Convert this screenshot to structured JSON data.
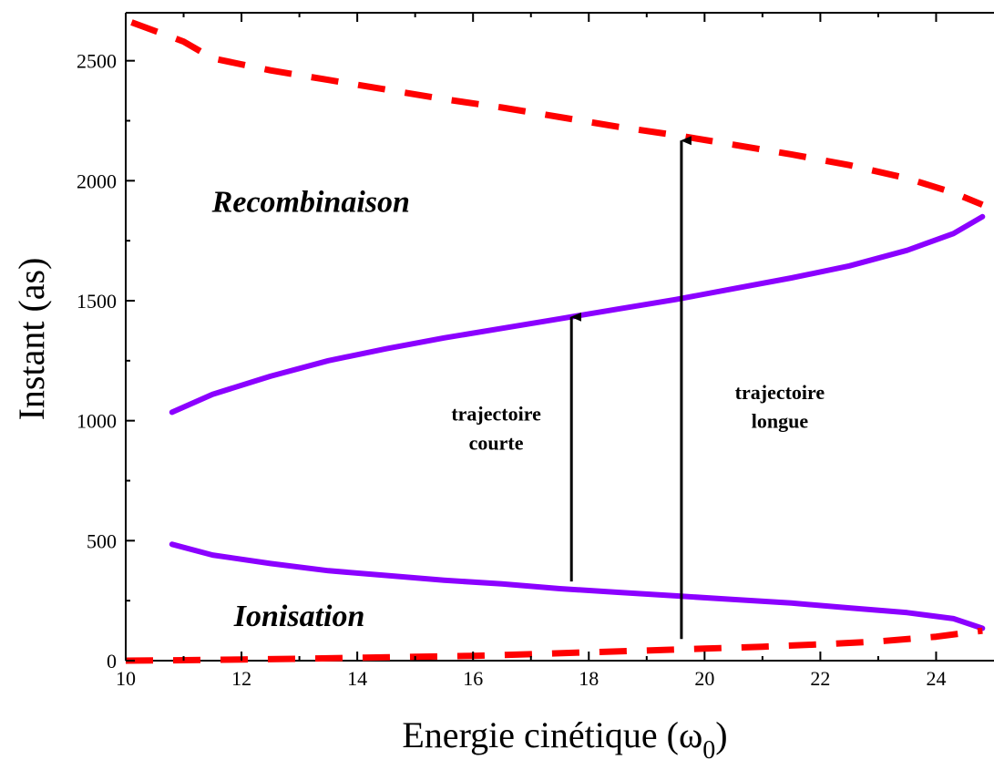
{
  "chart_data": {
    "type": "line",
    "title": "",
    "xlabel": "Energie cinétique (ω",
    "xlabel_sub": "0",
    "xlabel_end": ")",
    "ylabel": "Instant (as)",
    "xlim": [
      10,
      25
    ],
    "ylim": [
      0,
      2700
    ],
    "xticks": [
      10,
      12,
      14,
      16,
      18,
      20,
      22,
      24
    ],
    "yticks": [
      0,
      500,
      1000,
      1500,
      2000,
      2500
    ],
    "grid": false,
    "colors": {
      "solid": "#8B00FF",
      "dashed": "#FF0000"
    },
    "series": [
      {
        "style": "solid",
        "x": [
          10.8,
          11.5,
          12.5,
          13.5,
          14.5,
          15.5,
          16.5,
          17.5,
          18.5,
          19.5,
          20.5,
          21.5,
          22.5,
          23.5,
          24.3,
          24.8
        ],
        "y": [
          1035,
          1110,
          1185,
          1250,
          1300,
          1345,
          1385,
          1425,
          1465,
          1505,
          1550,
          1595,
          1645,
          1710,
          1780,
          1850
        ]
      },
      {
        "style": "solid",
        "x": [
          24.8,
          24.3,
          23.5,
          22.5,
          21.5,
          20.5,
          19.5,
          18.5,
          17.5,
          16.5,
          15.5,
          14.5,
          13.5,
          12.5,
          11.5,
          10.8
        ],
        "y": [
          135,
          175,
          200,
          220,
          240,
          255,
          270,
          285,
          300,
          320,
          335,
          355,
          375,
          405,
          440,
          485
        ]
      },
      {
        "style": "dashed",
        "x": [
          10.1,
          11.0,
          11.5,
          12.5,
          13.5,
          14.5,
          15.5,
          16.5,
          17.5,
          18.5,
          19.5,
          20.5,
          21.5,
          22.5,
          23.5,
          24.3,
          24.8
        ],
        "y": [
          2660,
          2580,
          2510,
          2460,
          2420,
          2380,
          2340,
          2305,
          2265,
          2225,
          2190,
          2150,
          2110,
          2065,
          2010,
          1950,
          1900
        ]
      },
      {
        "style": "dashed",
        "x": [
          10.0,
          11.0,
          12.0,
          13.0,
          14.0,
          15.0,
          16.0,
          17.0,
          18.0,
          19.0,
          20.0,
          21.0,
          22.0,
          23.0,
          24.0,
          24.8
        ],
        "y": [
          0,
          2,
          5,
          8,
          12,
          16,
          20,
          27,
          35,
          42,
          50,
          58,
          68,
          80,
          100,
          125
        ]
      }
    ],
    "arrows": [
      {
        "x": 17.7,
        "y_from": 330,
        "y_to": 1440,
        "label_lines": [
          "trajectoire",
          "courte"
        ],
        "label_x": 16.4,
        "label_y": [
          1000,
          880
        ]
      },
      {
        "x": 19.6,
        "y_from": 90,
        "y_to": 2175,
        "label_lines": [
          "trajectoire",
          "longue"
        ],
        "label_x": 21.3,
        "label_y": [
          1090,
          970
        ]
      }
    ],
    "annotations": [
      {
        "text": "Recombinaison",
        "x": 13.2,
        "y": 1870
      },
      {
        "text": "Ionisation",
        "x": 13.0,
        "y": 145
      }
    ]
  }
}
